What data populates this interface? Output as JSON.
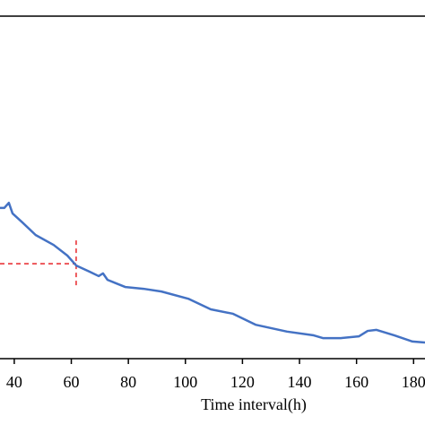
{
  "chart_data": {
    "type": "line",
    "x_label": "Time interval(h)",
    "xlim": [
      35,
      184
    ],
    "xticks": [
      40,
      60,
      80,
      100,
      120,
      140,
      160,
      180
    ],
    "ylim": [
      0,
      100
    ],
    "reference": {
      "x": 61.7,
      "y": 27.7,
      "color": "#e8262a"
    },
    "series": [
      {
        "color": "#4472c4",
        "x": [
          35.0,
          36.5,
          38.1,
          39.4,
          42.8,
          47.5,
          53.8,
          58.6,
          61.7,
          66.4,
          69.6,
          71.1,
          72.7,
          79.0,
          85.3,
          91.6,
          101.0,
          108.9,
          116.7,
          124.6,
          135.6,
          145.0,
          148.2,
          154.5,
          160.8,
          163.9,
          167.0,
          173.3,
          179.6,
          184.0
        ],
        "values": [
          44.0,
          44.0,
          45.5,
          42.4,
          39.8,
          36.1,
          33.2,
          30.1,
          27.2,
          25.4,
          24.1,
          24.9,
          23.0,
          20.9,
          20.4,
          19.6,
          17.5,
          14.4,
          13.1,
          9.9,
          7.9,
          6.8,
          6.0,
          6.0,
          6.5,
          8.1,
          8.4,
          6.8,
          5.0,
          4.7
        ]
      }
    ]
  }
}
